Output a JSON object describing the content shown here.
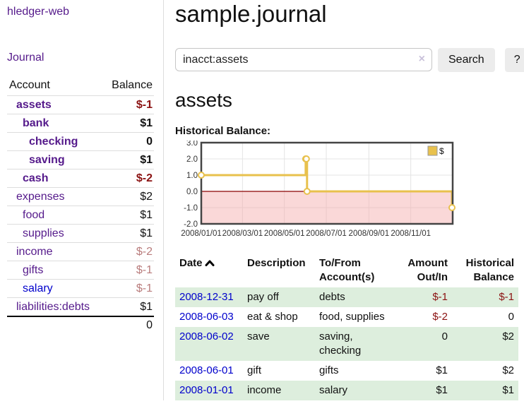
{
  "colors": {
    "link_purple": "#551a8b",
    "link_blue": "#0000cc",
    "negative_strong": "#8b1212",
    "negative_muted": "#b97c7c",
    "text": "#111111",
    "chart_line": "#e8c14d",
    "chart_negative_fill": "rgba(245,168,168,0.45)",
    "chart_zero_line": "#8b0000",
    "chart_grid": "#e4e4e4",
    "chart_border": "#444444",
    "row_green": "#ddeedd"
  },
  "sidebar": {
    "app_title": "hledger-web",
    "journal_link": "Journal",
    "accounts_table": {
      "headers": {
        "account": "Account",
        "balance": "Balance"
      },
      "rows": [
        {
          "name": "assets",
          "balance": "$-1",
          "depth": 1,
          "bold": true,
          "balance_tone": "negative",
          "link_tone": "purple"
        },
        {
          "name": "bank",
          "balance": "$1",
          "depth": 2,
          "bold": true,
          "balance_tone": "normal",
          "link_tone": "purple"
        },
        {
          "name": "checking",
          "balance": "0",
          "depth": 3,
          "bold": true,
          "balance_tone": "normal",
          "link_tone": "purple"
        },
        {
          "name": "saving",
          "balance": "$1",
          "depth": 3,
          "bold": true,
          "balance_tone": "normal",
          "link_tone": "purple"
        },
        {
          "name": "cash",
          "balance": "$-2",
          "depth": 2,
          "bold": true,
          "balance_tone": "negative",
          "link_tone": "purple"
        },
        {
          "name": "expenses",
          "balance": "$2",
          "depth": 1,
          "bold": false,
          "balance_tone": "normal",
          "link_tone": "purple"
        },
        {
          "name": "food",
          "balance": "$1",
          "depth": 2,
          "bold": false,
          "balance_tone": "normal",
          "link_tone": "purple"
        },
        {
          "name": "supplies",
          "balance": "$1",
          "depth": 2,
          "bold": false,
          "balance_tone": "normal",
          "link_tone": "purple"
        },
        {
          "name": "income",
          "balance": "$-2",
          "depth": 1,
          "bold": false,
          "balance_tone": "negative-muted",
          "link_tone": "purple"
        },
        {
          "name": "gifts",
          "balance": "$-1",
          "depth": 2,
          "bold": false,
          "balance_tone": "negative-muted",
          "link_tone": "purple"
        },
        {
          "name": "salary",
          "balance": "$-1",
          "depth": 2,
          "bold": false,
          "balance_tone": "negative-muted",
          "link_tone": "blue"
        },
        {
          "name": "liabilities:debts",
          "balance": "$1",
          "depth": 1,
          "bold": false,
          "balance_tone": "normal",
          "link_tone": "purple"
        }
      ],
      "total": "0"
    }
  },
  "main": {
    "title": "sample.journal",
    "search": {
      "value": "inacct:assets",
      "clear_icon": "×",
      "search_button": "Search",
      "help_button": "?"
    },
    "account_heading": "assets",
    "chart_label": "Historical Balance:"
  },
  "chart_data": {
    "type": "line",
    "style": "step",
    "title": "Historical Balance",
    "legend": [
      {
        "label": "$"
      }
    ],
    "legend_position": "top-right",
    "x": [
      "2008-01-01",
      "2008-06-01",
      "2008-06-02",
      "2008-06-03",
      "2008-12-31"
    ],
    "series": [
      {
        "name": "$",
        "values": [
          1,
          2,
          2,
          0,
          -1
        ]
      }
    ],
    "x_domain": [
      "2008-01-01",
      "2009-01-01"
    ],
    "x_ticks": [
      {
        "date": "2008-01-01",
        "label": "2008/01/01"
      },
      {
        "date": "2008-03-01",
        "label": "2008/03/01"
      },
      {
        "date": "2008-05-01",
        "label": "2008/05/01"
      },
      {
        "date": "2008-07-01",
        "label": "2008/07/01"
      },
      {
        "date": "2008-09-01",
        "label": "2008/09/01"
      },
      {
        "date": "2008-11-01",
        "label": "2008/11/01"
      }
    ],
    "y_ticks": [
      3,
      2,
      1,
      0,
      -1,
      -2
    ],
    "ylim": [
      -2,
      3
    ],
    "grid": true,
    "negative_region_shaded": true
  },
  "register": {
    "columns": [
      "Date",
      "Description",
      "To/From Account(s)",
      "Amount Out/In",
      "Historical Balance"
    ],
    "sort_icon": "chevron-up",
    "rows": [
      {
        "date": "2008-12-31",
        "description": "pay off",
        "accounts": "debts",
        "amount": "$-1",
        "balance": "$-1",
        "amount_tone": "negative",
        "balance_tone": "negative"
      },
      {
        "date": "2008-06-03",
        "description": "eat & shop",
        "accounts": "food, supplies",
        "amount": "$-2",
        "balance": "0",
        "amount_tone": "negative",
        "balance_tone": "normal"
      },
      {
        "date": "2008-06-02",
        "description": "save",
        "accounts": "saving, checking",
        "amount": "0",
        "balance": "$2",
        "amount_tone": "normal",
        "balance_tone": "normal"
      },
      {
        "date": "2008-06-01",
        "description": "gift",
        "accounts": "gifts",
        "amount": "$1",
        "balance": "$2",
        "amount_tone": "normal",
        "balance_tone": "normal"
      },
      {
        "date": "2008-01-01",
        "description": "income",
        "accounts": "salary",
        "amount": "$1",
        "balance": "$1",
        "amount_tone": "normal",
        "balance_tone": "normal"
      }
    ]
  }
}
